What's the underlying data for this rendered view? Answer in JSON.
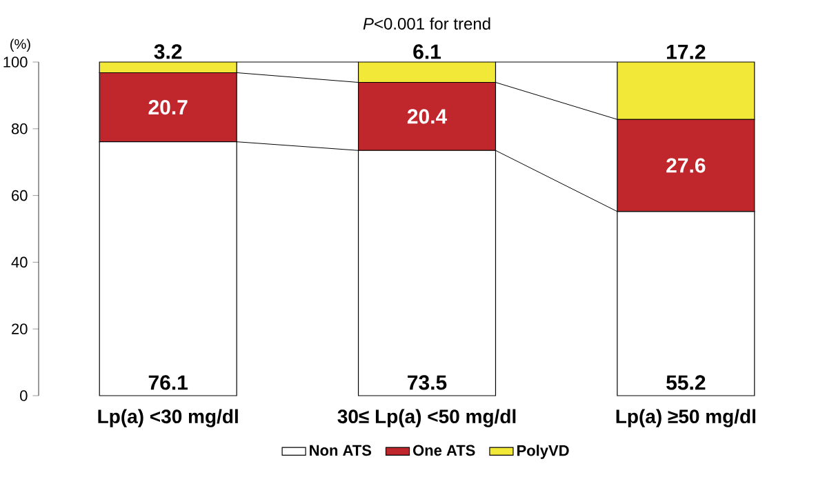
{
  "chart_data": {
    "type": "bar",
    "stacked": true,
    "title": "*P*<0.001 for trend",
    "ylabel": "(%)",
    "categories": [
      "Lp(a) <30 mg/dl",
      "30≤ Lp(a) <50 mg/dl",
      "Lp(a) ≥50 mg/dl"
    ],
    "series": [
      {
        "name": "Non ATS",
        "color": "#ffffff",
        "values": [
          76.1,
          73.5,
          55.2
        ]
      },
      {
        "name": "One ATS",
        "color": "#c0272d",
        "values": [
          20.7,
          20.4,
          27.6
        ]
      },
      {
        "name": "PolyVD",
        "color": "#f2e838",
        "values": [
          3.2,
          6.1,
          17.2
        ]
      }
    ],
    "ylim": [
      0,
      100
    ],
    "yticks": [
      0,
      20,
      40,
      60,
      80,
      100
    ],
    "data_labels": true,
    "legend": "bottom",
    "grid": false
  }
}
